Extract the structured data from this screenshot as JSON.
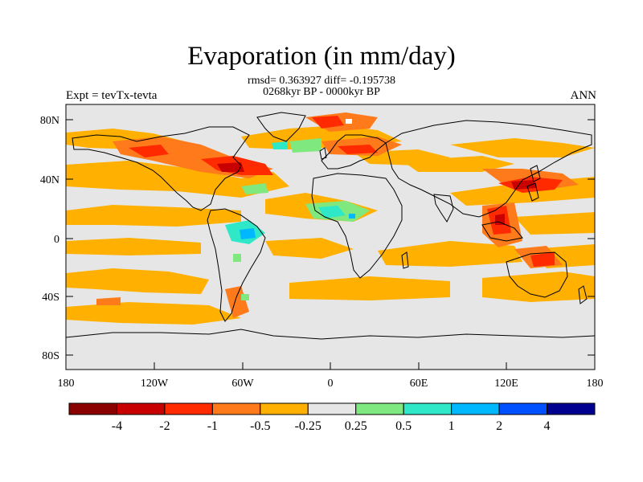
{
  "title": "Evaporation (in mm/day)",
  "stats_line": "rmsd= 0.363927 diff= -0.195738",
  "period_line": "0268kyr BP - 0000kyr BP",
  "experiment_label": "Expt = tevTx-tevta",
  "season_label": "ANN",
  "axes": {
    "lat_ticks": [
      "80N",
      "40N",
      "0",
      "40S",
      "80S"
    ],
    "lon_ticks": [
      "180",
      "120W",
      "60W",
      "0",
      "60E",
      "120E",
      "180"
    ]
  },
  "colorbar": {
    "labels": [
      "-4",
      "-2",
      "-1",
      "-0.5",
      "-0.25",
      "0.25",
      "0.5",
      "1",
      "2",
      "4"
    ],
    "colors": [
      "#8b0000",
      "#c80000",
      "#ff2a00",
      "#ff7a1a",
      "#ffb000",
      "#e6e6e6",
      "#7fe87f",
      "#2ee8c8",
      "#00b8ff",
      "#0050ff",
      "#000090"
    ]
  },
  "map_colors": {
    "ocean_neutral": "#e6e6e6",
    "coast": "#000000"
  }
}
